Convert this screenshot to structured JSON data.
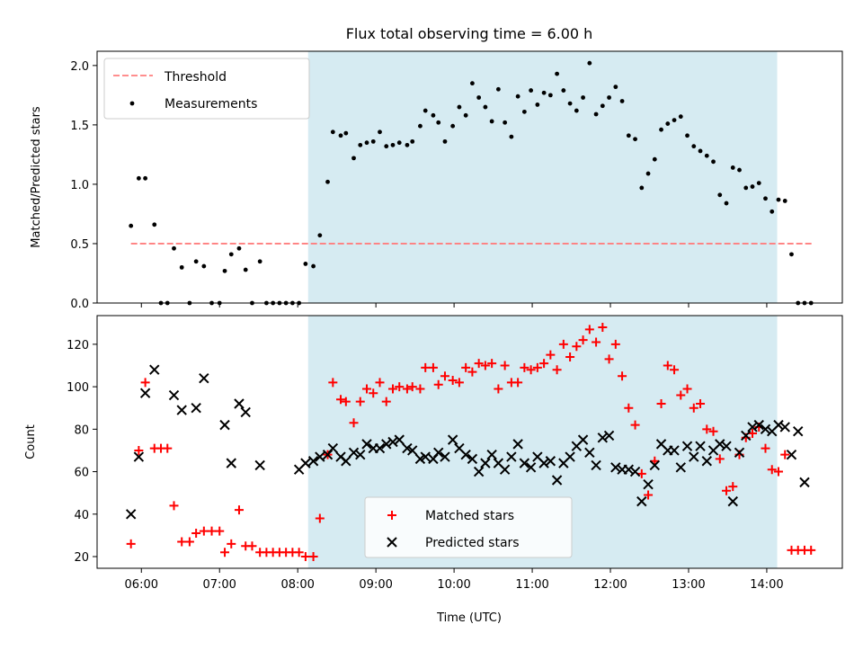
{
  "figure": {
    "title": "Flux total observing time = 6.00 h",
    "xlabel": "Time (UTC)",
    "xtick_labels": [
      "06:00",
      "07:00",
      "08:00",
      "09:00",
      "10:00",
      "11:00",
      "12:00",
      "13:00",
      "14:00"
    ]
  },
  "colors": {
    "threshold": "#ff7f7f",
    "measurements": "#000000",
    "matched": "#ff0000",
    "predicted": "#000000",
    "shade": "#add8e6"
  },
  "chart_data": [
    {
      "type": "scatter",
      "ylabel": "Matched/Predicted stars",
      "xlim": [
        "05:26",
        "14:58"
      ],
      "ylim": [
        0.0,
        2.12
      ],
      "yticks": [
        0.0,
        0.5,
        1.0,
        1.5,
        2.0
      ],
      "ytick_labels": [
        "0.0",
        "0.5",
        "1.0",
        "1.5",
        "2.0"
      ],
      "shaded_span": [
        "08:08",
        "14:08"
      ],
      "legend": {
        "location": "upper-left",
        "entries": [
          "Threshold",
          "Measurements"
        ]
      },
      "threshold": {
        "name": "Threshold",
        "y": 0.5,
        "x": [
          "05:52",
          "14:35"
        ]
      },
      "series": [
        {
          "name": "Measurements",
          "x": [
            "05:52",
            "05:58",
            "06:03",
            "06:10",
            "06:15",
            "06:20",
            "06:25",
            "06:31",
            "06:37",
            "06:42",
            "06:48",
            "06:54",
            "07:00",
            "07:04",
            "07:09",
            "07:15",
            "07:20",
            "07:25",
            "07:31",
            "07:36",
            "07:41",
            "07:46",
            "07:51",
            "07:56",
            "08:01",
            "08:06",
            "08:12",
            "08:17",
            "08:23",
            "08:27",
            "08:33",
            "08:37",
            "08:43",
            "08:48",
            "08:53",
            "08:58",
            "09:03",
            "09:08",
            "09:13",
            "09:18",
            "09:24",
            "09:28",
            "09:34",
            "09:38",
            "09:44",
            "09:48",
            "09:53",
            "09:59",
            "10:04",
            "10:09",
            "10:14",
            "10:19",
            "10:24",
            "10:29",
            "10:34",
            "10:39",
            "10:44",
            "10:49",
            "10:54",
            "10:59",
            "11:04",
            "11:09",
            "11:14",
            "11:19",
            "11:24",
            "11:29",
            "11:34",
            "11:39",
            "11:44",
            "11:49",
            "11:54",
            "11:59",
            "12:04",
            "12:09",
            "12:14",
            "12:19",
            "12:24",
            "12:29",
            "12:34",
            "12:39",
            "12:44",
            "12:49",
            "12:54",
            "12:59",
            "13:04",
            "13:09",
            "13:14",
            "13:19",
            "13:24",
            "13:29",
            "13:34",
            "13:39",
            "13:44",
            "13:49",
            "13:54",
            "13:59",
            "14:04",
            "14:09",
            "14:14",
            "14:19",
            "14:24",
            "14:29",
            "14:34"
          ],
          "y": [
            0.65,
            1.05,
            1.05,
            0.66,
            0.0,
            0.0,
            0.46,
            0.3,
            0.0,
            0.35,
            0.31,
            0.0,
            0.0,
            0.27,
            0.41,
            0.46,
            0.28,
            0.0,
            0.35,
            0.0,
            0.0,
            0.0,
            0.0,
            0.0,
            0.0,
            0.33,
            0.31,
            0.57,
            1.02,
            1.44,
            1.41,
            1.43,
            1.22,
            1.33,
            1.35,
            1.36,
            1.44,
            1.32,
            1.33,
            1.35,
            1.33,
            1.36,
            1.49,
            1.62,
            1.58,
            1.52,
            1.36,
            1.49,
            1.65,
            1.58,
            1.85,
            1.73,
            1.65,
            1.53,
            1.8,
            1.52,
            1.4,
            1.74,
            1.61,
            1.79,
            1.67,
            1.77,
            1.75,
            1.93,
            1.79,
            1.68,
            1.62,
            1.73,
            2.02,
            1.59,
            1.66,
            1.73,
            1.82,
            1.7,
            1.41,
            1.38,
            0.97,
            1.09,
            1.21,
            1.46,
            1.51,
            1.54,
            1.57,
            1.41,
            1.32,
            1.28,
            1.24,
            1.19,
            0.91,
            0.84,
            1.14,
            1.12,
            0.97,
            0.98,
            1.01,
            0.88,
            0.77,
            0.87,
            0.86,
            0.41,
            0.0,
            0.0,
            0.0
          ]
        }
      ]
    },
    {
      "type": "scatter",
      "ylabel": "Count",
      "xlabel": "Time (UTC)",
      "xlim": [
        "05:26",
        "14:58"
      ],
      "ylim": [
        14.5,
        133.5
      ],
      "yticks": [
        20,
        40,
        60,
        80,
        100,
        120
      ],
      "ytick_labels": [
        "20",
        "40",
        "60",
        "80",
        "100",
        "120"
      ],
      "shaded_span": [
        "08:08",
        "14:08"
      ],
      "legend": {
        "location": "lower-center",
        "entries": [
          "Matched stars",
          "Predicted stars"
        ]
      },
      "series": [
        {
          "name": "Matched stars",
          "marker": "plus",
          "x": [
            "05:52",
            "05:58",
            "06:03",
            "06:10",
            "06:15",
            "06:20",
            "06:25",
            "06:31",
            "06:37",
            "06:42",
            "06:48",
            "06:54",
            "07:00",
            "07:04",
            "07:09",
            "07:15",
            "07:20",
            "07:25",
            "07:31",
            "07:36",
            "07:41",
            "07:46",
            "07:51",
            "07:56",
            "08:01",
            "08:06",
            "08:12",
            "08:17",
            "08:23",
            "08:27",
            "08:33",
            "08:37",
            "08:43",
            "08:48",
            "08:53",
            "08:58",
            "09:03",
            "09:08",
            "09:13",
            "09:18",
            "09:24",
            "09:28",
            "09:34",
            "09:38",
            "09:44",
            "09:48",
            "09:53",
            "09:59",
            "10:04",
            "10:09",
            "10:14",
            "10:19",
            "10:24",
            "10:29",
            "10:34",
            "10:39",
            "10:44",
            "10:49",
            "10:54",
            "10:59",
            "11:04",
            "11:09",
            "11:14",
            "11:19",
            "11:24",
            "11:29",
            "11:34",
            "11:39",
            "11:44",
            "11:49",
            "11:54",
            "11:59",
            "12:04",
            "12:09",
            "12:14",
            "12:19",
            "12:24",
            "12:29",
            "12:34",
            "12:39",
            "12:44",
            "12:49",
            "12:54",
            "12:59",
            "13:04",
            "13:09",
            "13:14",
            "13:19",
            "13:24",
            "13:29",
            "13:34",
            "13:39",
            "13:44",
            "13:49",
            "13:54",
            "13:59",
            "14:04",
            "14:09",
            "14:14",
            "14:19",
            "14:24",
            "14:29",
            "14:34"
          ],
          "y": [
            26,
            70,
            102,
            71,
            71,
            71,
            44,
            27,
            27,
            31,
            32,
            32,
            32,
            22,
            26,
            42,
            25,
            25,
            22,
            22,
            22,
            22,
            22,
            22,
            22,
            20,
            20,
            38,
            68,
            102,
            94,
            93,
            83,
            93,
            99,
            97,
            102,
            93,
            99,
            100,
            99,
            100,
            99,
            109,
            109,
            101,
            105,
            103,
            102,
            109,
            107,
            111,
            110,
            111,
            99,
            110,
            102,
            102,
            109,
            108,
            109,
            111,
            115,
            108,
            120,
            114,
            119,
            122,
            127,
            121,
            128,
            113,
            120,
            105,
            90,
            82,
            59,
            49,
            65,
            92,
            110,
            108,
            96,
            99,
            90,
            92,
            80,
            79,
            66,
            51,
            53,
            68,
            76,
            78,
            81,
            71,
            61,
            60,
            68,
            23,
            23,
            23,
            23
          ]
        },
        {
          "name": "Predicted stars",
          "marker": "x",
          "x": [
            "05:52",
            "05:58",
            "06:03",
            "06:10",
            "06:15",
            "06:20",
            "06:25",
            "06:31",
            "06:37",
            "06:42",
            "06:48",
            "06:54",
            "07:00",
            "07:04",
            "07:09",
            "07:15",
            "07:20",
            "07:25",
            "07:31",
            "07:36",
            "07:41",
            "07:46",
            "07:51",
            "07:56",
            "08:01",
            "08:06",
            "08:12",
            "08:17",
            "08:23",
            "08:27",
            "08:33",
            "08:37",
            "08:43",
            "08:48",
            "08:53",
            "08:58",
            "09:03",
            "09:08",
            "09:13",
            "09:18",
            "09:24",
            "09:28",
            "09:34",
            "09:38",
            "09:44",
            "09:48",
            "09:53",
            "09:59",
            "10:04",
            "10:09",
            "10:14",
            "10:19",
            "10:24",
            "10:29",
            "10:34",
            "10:39",
            "10:44",
            "10:49",
            "10:54",
            "10:59",
            "11:04",
            "11:09",
            "11:14",
            "11:19",
            "11:24",
            "11:29",
            "11:34",
            "11:39",
            "11:44",
            "11:49",
            "11:54",
            "11:59",
            "12:04",
            "12:09",
            "12:14",
            "12:19",
            "12:24",
            "12:29",
            "12:34",
            "12:39",
            "12:44",
            "12:49",
            "12:54",
            "12:59",
            "13:04",
            "13:09",
            "13:14",
            "13:19",
            "13:24",
            "13:29",
            "13:34",
            "13:39",
            "13:44",
            "13:49",
            "13:54",
            "13:59",
            "14:04",
            "14:09",
            "14:14",
            "14:19",
            "14:24",
            "14:29",
            "14:34"
          ],
          "y": [
            40,
            67,
            97,
            108,
            null,
            null,
            96,
            89,
            null,
            90,
            104,
            null,
            null,
            82,
            64,
            92,
            88,
            null,
            63,
            null,
            null,
            null,
            null,
            null,
            61,
            64,
            65,
            67,
            68,
            71,
            67,
            65,
            69,
            68,
            73,
            71,
            71,
            73,
            74,
            75,
            71,
            70,
            66,
            67,
            66,
            69,
            67,
            75,
            71,
            68,
            66,
            60,
            64,
            68,
            64,
            61,
            67,
            73,
            64,
            62,
            67,
            64,
            65,
            56,
            64,
            67,
            72,
            75,
            69,
            63,
            76,
            77,
            62,
            61,
            61,
            60,
            46,
            54,
            63,
            73,
            70,
            70,
            62,
            72,
            67,
            72,
            65,
            70,
            73,
            72,
            46,
            69,
            77,
            81,
            82,
            80,
            79,
            82,
            81,
            68,
            79,
            55,
            null
          ]
        }
      ]
    }
  ]
}
